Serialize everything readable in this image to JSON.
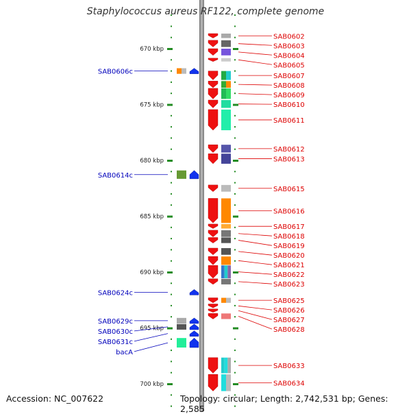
{
  "title": "Staphylococcus aureus RF122, complete genome",
  "footer": {
    "accession": "Accession: NC_007622",
    "summary": "Topology: circular; Length: 2,742,531 bp; Genes: 2,585"
  },
  "colors": {
    "forward_label": "#dd0000",
    "reverse_label": "#0000bb",
    "tick": "#228b22",
    "backbone": "#8c8c8c",
    "forward_gene": "#ee1111",
    "reverse_gene": "#1133ee"
  },
  "ruler": {
    "ticks": [
      {
        "kbp": 670,
        "label": "670 kbp"
      },
      {
        "kbp": 675,
        "label": "675 kbp"
      },
      {
        "kbp": 680,
        "label": "680 kbp"
      },
      {
        "kbp": 685,
        "label": "685 kbp"
      },
      {
        "kbp": 690,
        "label": "690 kbp"
      },
      {
        "kbp": 695,
        "label": "695 kbp"
      },
      {
        "kbp": 700,
        "label": "700 kbp"
      }
    ]
  },
  "forward_genes": [
    {
      "name": "SAB0602",
      "start_kbp": 668.65,
      "end_kbp": 669.05,
      "colors": [
        "#aaaaaa"
      ]
    },
    {
      "name": "SAB0603",
      "start_kbp": 669.25,
      "end_kbp": 669.85,
      "colors": [
        "#666666"
      ]
    },
    {
      "name": "SAB0604",
      "start_kbp": 670.0,
      "end_kbp": 670.6,
      "colors": [
        "#7755dd"
      ]
    },
    {
      "name": "SAB0605",
      "start_kbp": 670.85,
      "end_kbp": 671.15,
      "colors": [
        "#cccccc"
      ]
    },
    {
      "name": "SAB0607",
      "start_kbp": 672.0,
      "end_kbp": 672.8,
      "colors": [
        "#22aa44",
        "#22cccc"
      ]
    },
    {
      "name": "SAB0608",
      "start_kbp": 672.9,
      "end_kbp": 673.5,
      "colors": [
        "#33aa33",
        "#ff8800"
      ]
    },
    {
      "name": "SAB0609",
      "start_kbp": 673.55,
      "end_kbp": 674.5,
      "colors": [
        "#22bb55",
        "#33dd66"
      ]
    },
    {
      "name": "SAB0610",
      "start_kbp": 674.6,
      "end_kbp": 675.3,
      "colors": [
        "#22dda0"
      ]
    },
    {
      "name": "SAB0611",
      "start_kbp": 675.45,
      "end_kbp": 677.3,
      "colors": [
        "#22eeaa"
      ]
    },
    {
      "name": "SAB0612",
      "start_kbp": 678.6,
      "end_kbp": 679.3,
      "colors": [
        "#5555aa"
      ]
    },
    {
      "name": "SAB0613",
      "start_kbp": 679.4,
      "end_kbp": 680.3,
      "colors": [
        "#444499"
      ]
    },
    {
      "name": "SAB0615",
      "start_kbp": 682.2,
      "end_kbp": 682.8,
      "colors": [
        "#bbbbbb"
      ]
    },
    {
      "name": "SAB0616",
      "start_kbp": 683.4,
      "end_kbp": 685.6,
      "colors": [
        "#ff8800"
      ]
    },
    {
      "name": "SAB0617",
      "start_kbp": 685.7,
      "end_kbp": 686.1,
      "colors": [
        "#ffaa33"
      ]
    },
    {
      "name": "SAB0618",
      "start_kbp": 686.25,
      "end_kbp": 686.85,
      "colors": [
        "#777777"
      ]
    },
    {
      "name": "SAB0619",
      "start_kbp": 686.9,
      "end_kbp": 687.4,
      "colors": [
        "#555555"
      ]
    },
    {
      "name": "SAB0620",
      "start_kbp": 687.85,
      "end_kbp": 688.45,
      "colors": [
        "#555555"
      ]
    },
    {
      "name": "SAB0621",
      "start_kbp": 688.6,
      "end_kbp": 689.35,
      "colors": [
        "#ff8800"
      ]
    },
    {
      "name": "SAB0622",
      "start_kbp": 689.4,
      "end_kbp": 690.55,
      "colors": [
        "#3377cc",
        "#22cccc",
        "#8866aa"
      ]
    },
    {
      "name": "SAB0623",
      "start_kbp": 690.6,
      "end_kbp": 691.1,
      "colors": [
        "#777777"
      ]
    },
    {
      "name": "SAB0625",
      "start_kbp": 692.3,
      "end_kbp": 692.75,
      "colors": [
        "#ff8800",
        "#bbbbbb"
      ]
    },
    {
      "name": "SAB0626",
      "start_kbp": 692.85,
      "end_kbp": 693.2,
      "colors": []
    },
    {
      "name": "SAB0627",
      "start_kbp": 693.3,
      "end_kbp": 693.6,
      "colors": []
    },
    {
      "name": "SAB0628",
      "start_kbp": 693.7,
      "end_kbp": 694.2,
      "colors": [
        "#ee7777"
      ]
    },
    {
      "name": "SAB0633",
      "start_kbp": 697.65,
      "end_kbp": 699.05,
      "colors": [
        "#22cccc",
        "#22dddd",
        "#aaaaaa"
      ]
    },
    {
      "name": "SAB0634",
      "start_kbp": 699.15,
      "end_kbp": 700.65,
      "colors": [
        "#22dddd",
        "#bbbbbb"
      ]
    }
  ],
  "reverse_genes": [
    {
      "name": "SAB0606c",
      "start_kbp": 671.75,
      "end_kbp": 672.25,
      "colors": [
        "#ff8800",
        "#bbbbbb"
      ]
    },
    {
      "name": "SAB0614c",
      "start_kbp": 680.9,
      "end_kbp": 681.65,
      "colors": [
        "#669933"
      ]
    },
    {
      "name": "SAB0624c",
      "start_kbp": 691.55,
      "end_kbp": 692.05,
      "colors": []
    },
    {
      "name": "SAB0629c",
      "start_kbp": 694.1,
      "end_kbp": 694.6,
      "colors": [
        "#aaaaaa"
      ]
    },
    {
      "name": "SAB0630c",
      "start_kbp": 694.65,
      "end_kbp": 695.15,
      "colors": [
        "#555555"
      ]
    },
    {
      "name": "SAB0631c",
      "start_kbp": 695.25,
      "end_kbp": 695.75,
      "colors": []
    },
    {
      "name": "bacA",
      "start_kbp": 695.9,
      "end_kbp": 696.75,
      "colors": [
        "#22ee99"
      ]
    }
  ]
}
